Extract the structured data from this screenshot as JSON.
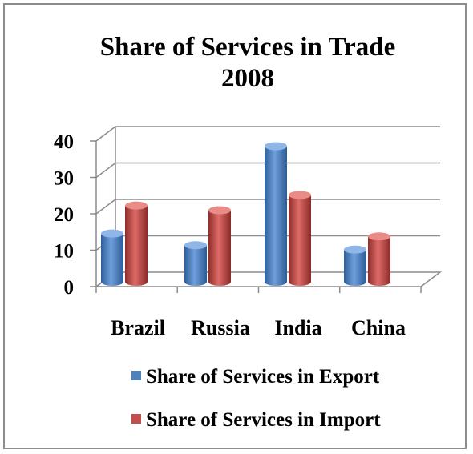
{
  "chart_data": {
    "type": "bar",
    "title_line1": "Share of Services in Trade",
    "title_line2": "2008",
    "categories": [
      "Brazil",
      "Russia",
      "India",
      "China"
    ],
    "y_ticks": [
      "0",
      "10",
      "20",
      "30",
      "40"
    ],
    "ylim": [
      0,
      40
    ],
    "series": [
      {
        "name": "Share of Services in Export",
        "values": [
          12.6,
          9.4,
          36.6,
          8.2
        ],
        "color": "#4f81bd"
      },
      {
        "name": "Share of Services in Import",
        "values": [
          20.3,
          19.0,
          23.2,
          11.8
        ],
        "color": "#c0504d"
      }
    ],
    "legend_position": "bottom",
    "grid": true
  }
}
